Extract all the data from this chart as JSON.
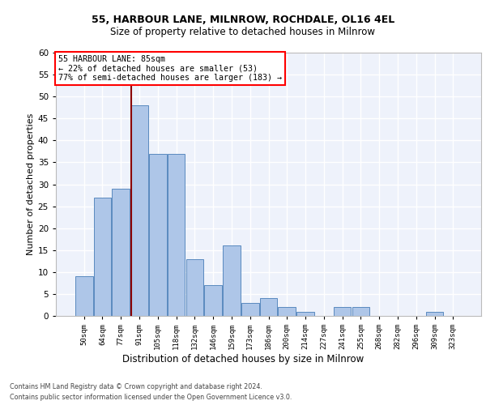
{
  "title_line1": "55, HARBOUR LANE, MILNROW, ROCHDALE, OL16 4EL",
  "title_line2": "Size of property relative to detached houses in Milnrow",
  "xlabel": "Distribution of detached houses by size in Milnrow",
  "ylabel": "Number of detached properties",
  "categories": [
    "50sqm",
    "64sqm",
    "77sqm",
    "91sqm",
    "105sqm",
    "118sqm",
    "132sqm",
    "146sqm",
    "159sqm",
    "173sqm",
    "186sqm",
    "200sqm",
    "214sqm",
    "227sqm",
    "241sqm",
    "255sqm",
    "268sqm",
    "282sqm",
    "296sqm",
    "309sqm",
    "323sqm"
  ],
  "values": [
    9,
    27,
    29,
    48,
    37,
    37,
    13,
    7,
    16,
    3,
    4,
    2,
    1,
    0,
    2,
    2,
    0,
    0,
    0,
    1,
    0
  ],
  "bar_color": "#aec6e8",
  "bar_edge_color": "#5a8abf",
  "annotation_title": "55 HARBOUR LANE: 85sqm",
  "annotation_line1": "← 22% of detached houses are smaller (53)",
  "annotation_line2": "77% of semi-detached houses are larger (183) →",
  "annotation_box_color": "white",
  "annotation_box_edge_color": "red",
  "vline_color": "#8b0000",
  "ylim": [
    0,
    60
  ],
  "yticks": [
    0,
    5,
    10,
    15,
    20,
    25,
    30,
    35,
    40,
    45,
    50,
    55,
    60
  ],
  "footer_line1": "Contains HM Land Registry data © Crown copyright and database right 2024.",
  "footer_line2": "Contains public sector information licensed under the Open Government Licence v3.0.",
  "background_color": "#eef2fb",
  "grid_color": "#ffffff"
}
